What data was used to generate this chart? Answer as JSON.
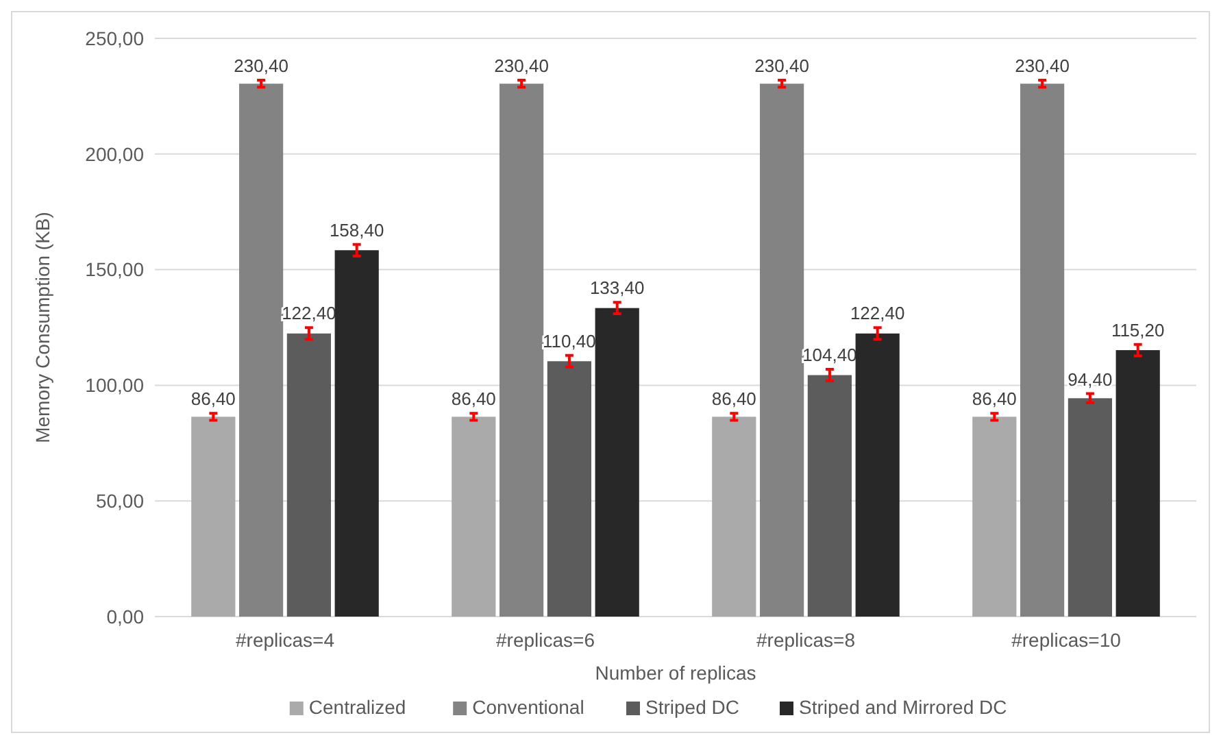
{
  "chart_data": {
    "type": "bar",
    "xlabel": "Number of replicas",
    "ylabel": "Memory Consumption (KB)",
    "categories": [
      "#replicas=4",
      "#replicas=6",
      "#replicas=8",
      "#replicas=10"
    ],
    "series": [
      {
        "name": "Centralized",
        "color": "#aaaaaa",
        "values": [
          86.4,
          86.4,
          86.4,
          86.4
        ],
        "errors": [
          1.5,
          1.5,
          1.5,
          1.5
        ],
        "value_labels": [
          "86,40",
          "86,40",
          "86,40",
          "86,40"
        ]
      },
      {
        "name": "Conventional",
        "color": "#838383",
        "values": [
          230.4,
          230.4,
          230.4,
          230.4
        ],
        "errors": [
          1.5,
          1.5,
          1.5,
          1.5
        ],
        "value_labels": [
          "230,40",
          "230,40",
          "230,40",
          "230,40"
        ]
      },
      {
        "name": "Striped DC",
        "color": "#5c5c5c",
        "values": [
          122.4,
          110.4,
          104.4,
          94.4
        ],
        "errors": [
          2.5,
          2.5,
          2.5,
          2
        ],
        "value_labels": [
          "122,40",
          "110,40",
          "104,40",
          "94,40"
        ]
      },
      {
        "name": "Striped and Mirrored DC",
        "color": "#282828",
        "values": [
          158.4,
          133.4,
          122.4,
          115.2
        ],
        "errors": [
          2.5,
          2.5,
          2.5,
          2.5
        ],
        "value_labels": [
          "158,40",
          "133,40",
          "122,40",
          "115,20"
        ]
      }
    ],
    "ylim": [
      0,
      250
    ],
    "yticks": [
      {
        "value": 0,
        "label": "0,00"
      },
      {
        "value": 50,
        "label": "50,00"
      },
      {
        "value": 100,
        "label": "100,00"
      },
      {
        "value": 150,
        "label": "150,00"
      },
      {
        "value": 200,
        "label": "200,00"
      },
      {
        "value": 250,
        "label": "250,00"
      }
    ],
    "grid": "y",
    "legend": "bottom"
  }
}
